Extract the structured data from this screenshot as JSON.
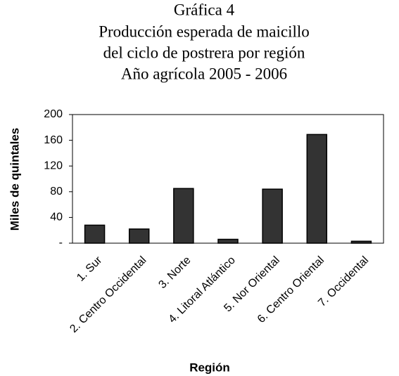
{
  "chart_data": {
    "type": "bar",
    "title": [
      "Gráfica 4",
      "Producción esperada de maicillo",
      "del ciclo de postrera por región",
      "Año agrícola 2005 - 2006"
    ],
    "x_label": "Región",
    "y_label": "Miles de quintales",
    "categories": [
      "1.  Sur",
      "2. Centro Occidental",
      "3.  Norte",
      "4.  Litoral Atlántico",
      "5.  Nor Oriental",
      "6.  Centro Oriental",
      "7.  Occidental"
    ],
    "values": [
      28,
      22,
      85,
      6,
      84,
      169,
      3
    ],
    "color": "#333333",
    "ylim": [
      0,
      200
    ],
    "yticks": [
      {
        "value": 0,
        "label": "-"
      },
      40,
      80,
      120,
      160,
      200
    ],
    "grid": false
  }
}
